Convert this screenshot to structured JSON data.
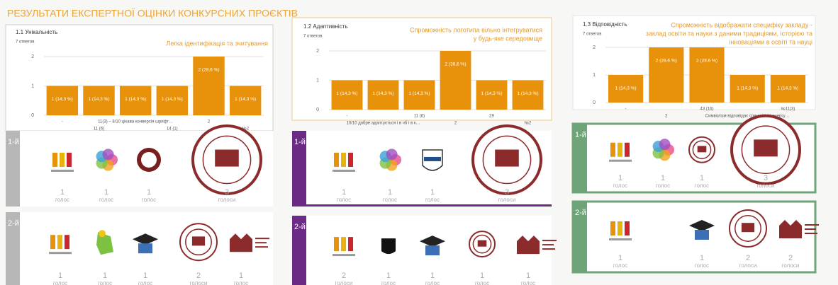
{
  "title": "РЕЗУЛЬТАТИ ЕКСПЕРТНОЇ ОЦІНКИ КОНКУРСНИХ ПРОЄКТІВ",
  "chart_data": [
    {
      "type": "bar",
      "title": "1.1 Унікальність",
      "subtitle": "7 ответов",
      "annotation": [
        "Легка ідентифікація та зчитування"
      ],
      "categories": [
        "-",
        "11 (6)",
        "11(3) – 8/10 цікава конверсія шрифт…",
        "14 (1)",
        "2",
        "№2"
      ],
      "values": [
        1,
        1,
        1,
        1,
        2,
        1
      ],
      "value_labels": [
        "1 (14,3 %)",
        "1 (14,3 %)",
        "1 (14,3 %)",
        "1 (14,3 %)",
        "2 (28,6 %)",
        "1 (14,3 %)"
      ],
      "color": "#e8920c",
      "ylim": [
        0,
        2
      ],
      "yticks": [
        0,
        1,
        2
      ],
      "grid": true
    },
    {
      "type": "bar",
      "title": "1.2 Адаптивність",
      "subtitle": "7 ответов",
      "annotation": [
        "Спроможність логотипа вільно інтегруватися",
        "у будь-яке середовище"
      ],
      "categories": [
        "-",
        "10/10 добре адаптується і в чб і в к…",
        "11 (6)",
        "2",
        "29",
        "№2"
      ],
      "values": [
        1,
        1,
        1,
        2,
        1,
        1
      ],
      "value_labels": [
        "1 (14,3 %)",
        "1 (14,3 %)",
        "1 (14,3 %)",
        "2 (28,6 %)",
        "1 (14,3 %)",
        "1 (14,3 %)"
      ],
      "color": "#e8920c",
      "ylim": [
        0,
        2
      ],
      "yticks": [
        0,
        1,
        2
      ],
      "grid": true
    },
    {
      "type": "bar",
      "title": "1.3 Відповідність",
      "subtitle": "7 ответов",
      "annotation": [
        "Спроможність відображати специфіку закладу -",
        "заклад освіти та науки з даними традиціями, історією та",
        "інноваціями в освіті та науці"
      ],
      "categories": [
        "-",
        "2",
        "43 (16)",
        "Символізм відповідає специфіці і енергу…",
        "№11(3)"
      ],
      "values": [
        1,
        2,
        2,
        1,
        1
      ],
      "value_labels": [
        "1 (14,3 %)",
        "2 (28,6 %)",
        "2 (28,6 %)",
        "1 (14,3 %)",
        "1 (14,3 %)"
      ],
      "color": "#e8920c",
      "ylim": [
        0,
        2
      ],
      "yticks": [
        0,
        1,
        2
      ],
      "grid": true
    }
  ],
  "votes": [
    {
      "rows": [
        {
          "label": "1-й",
          "counts": [
            1,
            1,
            1,
            3
          ],
          "units": [
            "голос",
            "голос",
            "голос",
            "голоси"
          ]
        },
        {
          "label": "2-й",
          "counts": [
            1,
            1,
            1,
            2,
            1
          ],
          "units": [
            "голос",
            "голос",
            "голос",
            "голоси",
            "голос"
          ]
        }
      ]
    },
    {
      "rows": [
        {
          "label": "1-й",
          "counts": [
            1,
            1,
            1,
            3
          ],
          "units": [
            "голос",
            "голос",
            "голос",
            "голоси"
          ]
        },
        {
          "label": "2-й",
          "counts": [
            2,
            1,
            1,
            1,
            1
          ],
          "units": [
            "голоси",
            "голос",
            "голос",
            "голос",
            "голос"
          ]
        }
      ]
    },
    {
      "rows": [
        {
          "label": "1-й",
          "counts": [
            1,
            1,
            1,
            3
          ],
          "units": [
            "голос",
            "голос",
            "голос",
            "голоси"
          ]
        },
        {
          "label": "2-й",
          "counts": [
            1,
            1,
            2,
            2
          ],
          "units": [
            "голос",
            "голос",
            "голоси",
            "голоси"
          ]
        }
      ]
    }
  ]
}
